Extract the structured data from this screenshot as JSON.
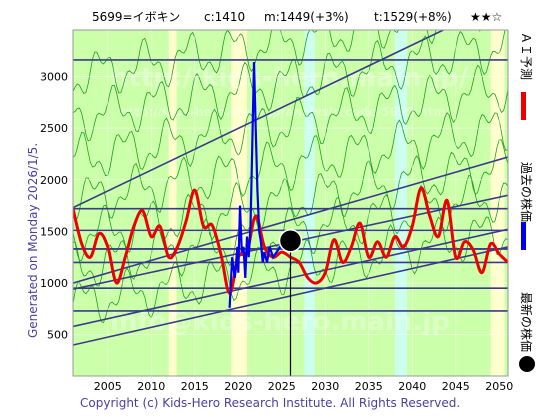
{
  "header": {
    "code_name": "5699=イボキン",
    "current": "c:1410",
    "mid": "m:1449(+3%)",
    "target": "t:1529(+8%)",
    "stars": "★★☆"
  },
  "left_label": "Generated on Monday 2026/1/5.",
  "right_legend": {
    "ai": "ＡＩ予測",
    "past": "過去の株価",
    "latest": "最新の株価"
  },
  "footer": "Copyright (c) Kids-Hero Research Institute. All Rights Reserved.",
  "watermarks": {
    "top": "http://kids-hero.main.jp/",
    "sub": "http://kids-hero.main.jp/analysis/code/5699.html",
    "bottom": "info@kids-hero.main.jp"
  },
  "colors": {
    "plot_bg": "#ccffaa",
    "band_light": "#ffffcc",
    "band_cyan": "#ccffee",
    "thin_green": "#1aa31a",
    "channel": "#3a3a8a",
    "ai_line": "#ee0000",
    "past_line": "#0000ee",
    "latest_dot": "#000000"
  },
  "chart_data": {
    "type": "line",
    "x_ticks": [
      2005,
      2010,
      2015,
      2020,
      2025,
      2030,
      2035,
      2040,
      2045,
      2050
    ],
    "y_ticks": [
      500,
      1000,
      1500,
      2000,
      2500,
      3000
    ],
    "xlim": [
      2001,
      2051
    ],
    "ylim": [
      100,
      3450
    ],
    "horizontal_levels": [
      730,
      950,
      1200,
      1330,
      1510,
      1720,
      3160
    ],
    "channel_lines": [
      {
        "x": [
          2001,
          2051
        ],
        "y": [
          1730,
          3750
        ]
      },
      {
        "x": [
          2001,
          2051
        ],
        "y": [
          1000,
          2220
        ]
      },
      {
        "x": [
          2001,
          2051
        ],
        "y": [
          940,
          1850
        ]
      },
      {
        "x": [
          2001,
          2051
        ],
        "y": [
          580,
          1520
        ]
      },
      {
        "x": [
          2001,
          2051
        ],
        "y": [
          400,
          1350
        ]
      },
      {
        "x": [
          2001,
          2051
        ],
        "y": [
          1330,
          1330
        ]
      }
    ],
    "series": [
      {
        "name": "ＡＩ予測",
        "x": [
          2001,
          2002,
          2003,
          2004,
          2005,
          2006,
          2007,
          2008,
          2009,
          2010,
          2011,
          2012,
          2013,
          2014,
          2015,
          2016,
          2017,
          2018,
          2019,
          2020,
          2021,
          2022,
          2023,
          2024,
          2025,
          2026,
          2027,
          2028,
          2029,
          2030,
          2031,
          2032,
          2033,
          2034,
          2035,
          2036,
          2037,
          2038,
          2039,
          2040,
          2041,
          2042,
          2043,
          2044,
          2045,
          2046,
          2047,
          2048,
          2049,
          2050,
          2051
        ],
        "y": [
          1720,
          1380,
          1250,
          1480,
          1350,
          1000,
          1250,
          1550,
          1700,
          1450,
          1550,
          1250,
          1350,
          1600,
          1900,
          1550,
          1560,
          1280,
          900,
          1250,
          1300,
          1650,
          1350,
          1250,
          1300,
          1250,
          1200,
          1050,
          1000,
          1100,
          1420,
          1200,
          1350,
          1580,
          1250,
          1400,
          1250,
          1450,
          1350,
          1550,
          1920,
          1650,
          1450,
          1800,
          1250,
          1400,
          1320,
          1100,
          1380,
          1280,
          1200
        ]
      },
      {
        "name": "過去の株価",
        "x": [
          2019.0,
          2019.3,
          2019.6,
          2019.9,
          2020.0,
          2020.2,
          2020.4,
          2020.6,
          2020.8,
          2021.0,
          2021.2,
          2021.4,
          2021.6,
          2021.8,
          2022.0,
          2022.2,
          2022.4,
          2022.6,
          2022.8,
          2023.0,
          2023.3,
          2023.6,
          2024.0,
          2024.4,
          2024.8,
          2025.2,
          2025.6,
          2026.0
        ],
        "y": [
          760,
          1250,
          1050,
          1350,
          1100,
          1750,
          1300,
          1350,
          1050,
          1450,
          1250,
          1550,
          2300,
          3140,
          2500,
          1900,
          1500,
          1400,
          1200,
          1300,
          1200,
          1350,
          1250,
          1300,
          1350,
          1400,
          1380,
          1410
        ]
      }
    ],
    "latest": {
      "x": 2026.0,
      "y": 1410
    }
  }
}
